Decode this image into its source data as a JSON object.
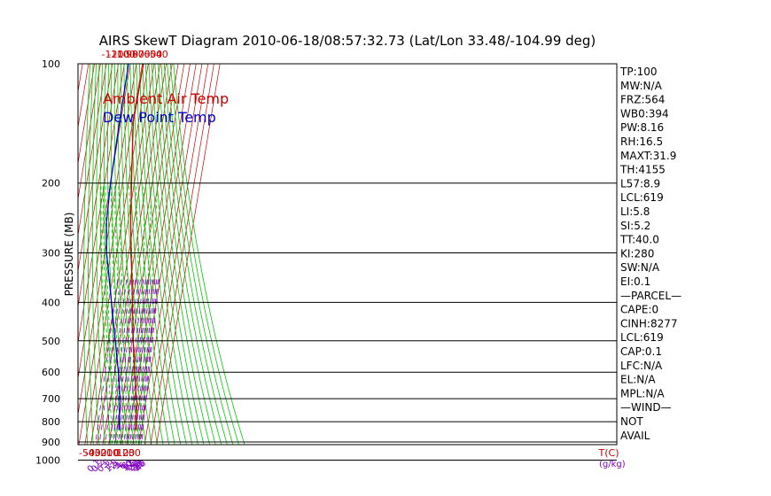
{
  "colors": {
    "ambient": "#cc0000",
    "dewpoint": "#0000cc",
    "green": "#00c800",
    "purple": "#8000c0",
    "red_label": "#cc0000",
    "frame": "#000000"
  },
  "chart_data": {
    "type": "line",
    "title": "AIRS SkewT Diagram 2010-06-18/08:57:32.73 (Lat/Lon 33.48/-104.99 deg)",
    "ylabel": "PRESSURE (MB)",
    "xlabel": "T(C)",
    "mixing_ratio_label": "(g/kg)",
    "legend": [
      "Ambient Air Temp",
      "Dew Point Temp"
    ],
    "pressure_ticks": [
      100,
      200,
      300,
      400,
      500,
      600,
      700,
      800,
      900,
      1000
    ],
    "bottom_temp_ticks": [
      -50,
      -40,
      -30,
      -20,
      -10,
      0,
      10,
      20,
      30
    ],
    "top_temp_ticks": [
      -120,
      -110,
      -100,
      -90,
      -80,
      -70,
      -60,
      -50,
      -40
    ],
    "mixing_ratio_ticks": [
      "0.1",
      "0.2",
      "0.5",
      "1",
      "1.5",
      "2",
      "3",
      "4",
      "6",
      "8",
      "10",
      "12",
      "15",
      "20",
      "25",
      "30",
      "35",
      "40"
    ],
    "series": [
      {
        "name": "Ambient Air Temp",
        "points": [
          {
            "p": 100,
            "t": -68.0
          },
          {
            "p": 140,
            "t": -69.0
          },
          {
            "p": 190,
            "t": -57.0
          },
          {
            "p": 250,
            "t": -45.5
          },
          {
            "p": 300,
            "t": -36.0
          },
          {
            "p": 400,
            "t": -20.0
          },
          {
            "p": 500,
            "t": -8.0
          },
          {
            "p": 600,
            "t": 3.0
          },
          {
            "p": 680,
            "t": 11.5
          },
          {
            "p": 720,
            "t": 16.0
          },
          {
            "p": 790,
            "t": 18.5
          },
          {
            "p": 840,
            "t": 20.5
          }
        ]
      },
      {
        "name": "Dew Point Temp",
        "points": [
          {
            "p": 100,
            "t": -93.0
          },
          {
            "p": 140,
            "t": -92.0
          },
          {
            "p": 200,
            "t": -90.0
          },
          {
            "p": 250,
            "t": -86.0
          },
          {
            "p": 300,
            "t": -77.0
          },
          {
            "p": 400,
            "t": -55.0
          },
          {
            "p": 500,
            "t": -38.0
          },
          {
            "p": 600,
            "t": -24.0
          },
          {
            "p": 700,
            "t": -14.0
          },
          {
            "p": 840,
            "t": -7.0
          }
        ]
      }
    ],
    "stats": [
      "TP:100",
      "MW:N/A",
      "FRZ:564",
      "WB0:394",
      "PW:8.16",
      "RH:16.5",
      "MAXT:31.9",
      "TH:4155",
      "L57:8.9",
      "LCL:619",
      "LI:5.8",
      "SI:5.2",
      "TT:40.0",
      "KI:280",
      "SW:N/A",
      "EI:0.1",
      "—PARCEL—",
      "CAPE:0",
      "CINH:8277",
      "LCL:619",
      "CAP:0.1",
      "LFC:N/A",
      "EL:N/A",
      "MPL:N/A",
      "—WIND—",
      "NOT",
      "AVAIL"
    ]
  }
}
